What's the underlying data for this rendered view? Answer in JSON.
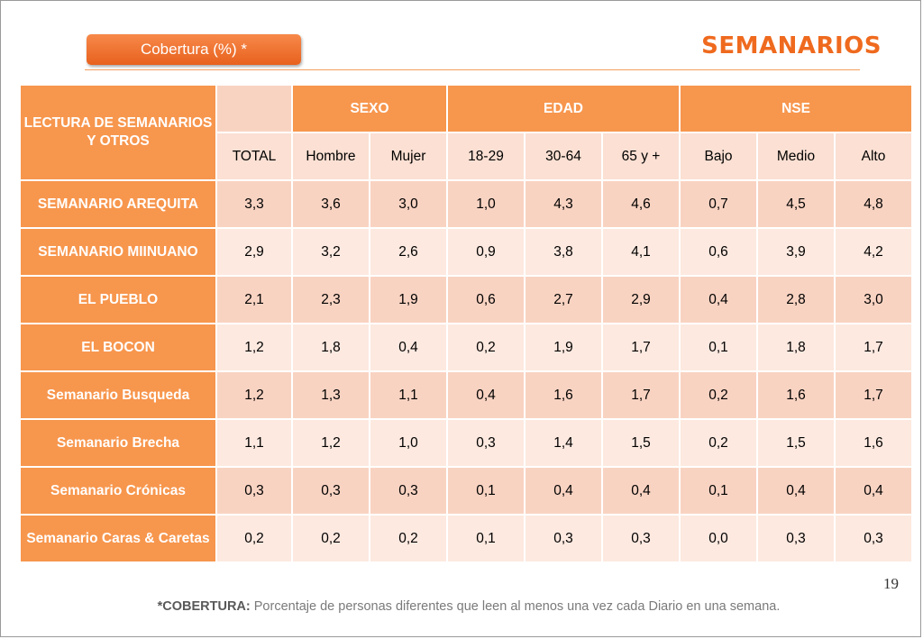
{
  "header": {
    "tab_label": "Cobertura (%) *",
    "title": "SEMANARIOS"
  },
  "table": {
    "corner_label": "LECTURA DE SEMANARIOS Y OTROS",
    "groups": [
      "SEXO",
      "EDAD",
      "NSE"
    ],
    "columns": [
      "TOTAL",
      "Hombre",
      "Mujer",
      "18-29",
      "30-64",
      "65 y +",
      "Bajo",
      "Medio",
      "Alto"
    ],
    "rows": [
      {
        "label": "SEMANARIO AREQUITA",
        "values": [
          "3,3",
          "3,6",
          "3,0",
          "1,0",
          "4,3",
          "4,6",
          "0,7",
          "4,5",
          "4,8"
        ]
      },
      {
        "label": "SEMANARIO MIINUANO",
        "values": [
          "2,9",
          "3,2",
          "2,6",
          "0,9",
          "3,8",
          "4,1",
          "0,6",
          "3,9",
          "4,2"
        ]
      },
      {
        "label": "EL PUEBLO",
        "values": [
          "2,1",
          "2,3",
          "1,9",
          "0,6",
          "2,7",
          "2,9",
          "0,4",
          "2,8",
          "3,0"
        ]
      },
      {
        "label": "EL BOCON",
        "values": [
          "1,2",
          "1,8",
          "0,4",
          "0,2",
          "1,9",
          "1,7",
          "0,1",
          "1,8",
          "1,7"
        ]
      },
      {
        "label": "Semanario Busqueda",
        "values": [
          "1,2",
          "1,3",
          "1,1",
          "0,4",
          "1,6",
          "1,7",
          "0,2",
          "1,6",
          "1,7"
        ]
      },
      {
        "label": "Semanario Brecha",
        "values": [
          "1,1",
          "1,2",
          "1,0",
          "0,3",
          "1,4",
          "1,5",
          "0,2",
          "1,5",
          "1,6"
        ]
      },
      {
        "label": "Semanario Crónicas",
        "values": [
          "0,3",
          "0,3",
          "0,3",
          "0,1",
          "0,4",
          "0,4",
          "0,1",
          "0,4",
          "0,4"
        ]
      },
      {
        "label": "Semanario Caras & Caretas",
        "values": [
          "0,2",
          "0,2",
          "0,2",
          "0,1",
          "0,3",
          "0,3",
          "0,0",
          "0,3",
          "0,3"
        ]
      }
    ]
  },
  "page_number": "19",
  "footnote": {
    "term": "*COBERTURA:",
    "text": " Porcentaje de personas diferentes que leen al menos una vez cada Diario en una semana."
  },
  "colors": {
    "accent": "#ef6a1e",
    "header_fill": "#f7964d",
    "cell_dark": "#f9d3c2",
    "cell_light": "#fde9e0"
  }
}
